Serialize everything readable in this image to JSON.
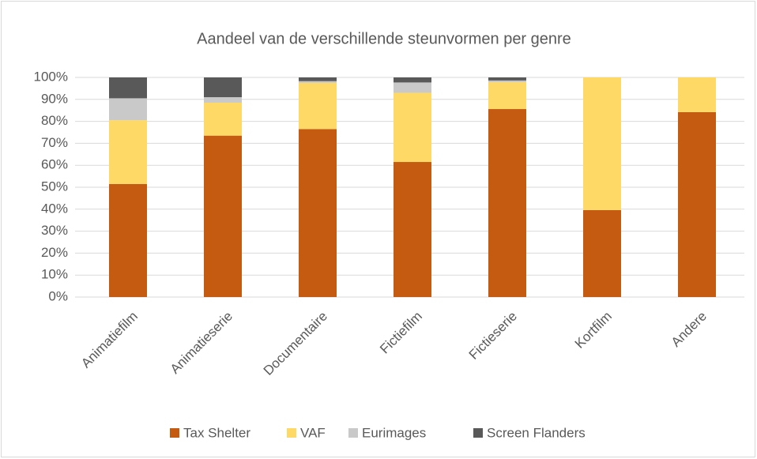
{
  "chart_data": {
    "type": "stacked_bar",
    "title": "Aandeel van de verschillende steunvormen per genre",
    "categories": [
      "Animatiefilm",
      "Animatieserie",
      "Documentaire",
      "Fictiefilm",
      "Fictieserie",
      "Kortfilm",
      "Andere"
    ],
    "series": [
      {
        "name": "Tax Shelter",
        "color": "#c55a11",
        "values": [
          51.5,
          73.5,
          76.5,
          61.5,
          85.6,
          39.6,
          84.2
        ]
      },
      {
        "name": "VAF",
        "color": "#ffd966",
        "values": [
          29,
          15,
          21,
          31.5,
          12.2,
          60.4,
          15.8
        ]
      },
      {
        "name": "Eurimages",
        "color": "#c9c9c9",
        "values": [
          10,
          2.5,
          0.8,
          4.7,
          0.8,
          0,
          0
        ]
      },
      {
        "name": "Screen Flanders",
        "color": "#595959",
        "values": [
          9.5,
          9,
          1.7,
          2.3,
          1.4,
          0,
          0
        ]
      }
    ],
    "ylim": [
      0,
      100
    ],
    "yticks": [
      {
        "value": 0,
        "label": "0%"
      },
      {
        "value": 10,
        "label": "10%"
      },
      {
        "value": 20,
        "label": "20%"
      },
      {
        "value": 30,
        "label": "30%"
      },
      {
        "value": 40,
        "label": "40%"
      },
      {
        "value": 50,
        "label": "50%"
      },
      {
        "value": 60,
        "label": "60%"
      },
      {
        "value": 70,
        "label": "70%"
      },
      {
        "value": 80,
        "label": "80%"
      },
      {
        "value": 90,
        "label": "90%"
      },
      {
        "value": 100,
        "label": "100%"
      }
    ],
    "grid": true,
    "legend": "bottom"
  }
}
